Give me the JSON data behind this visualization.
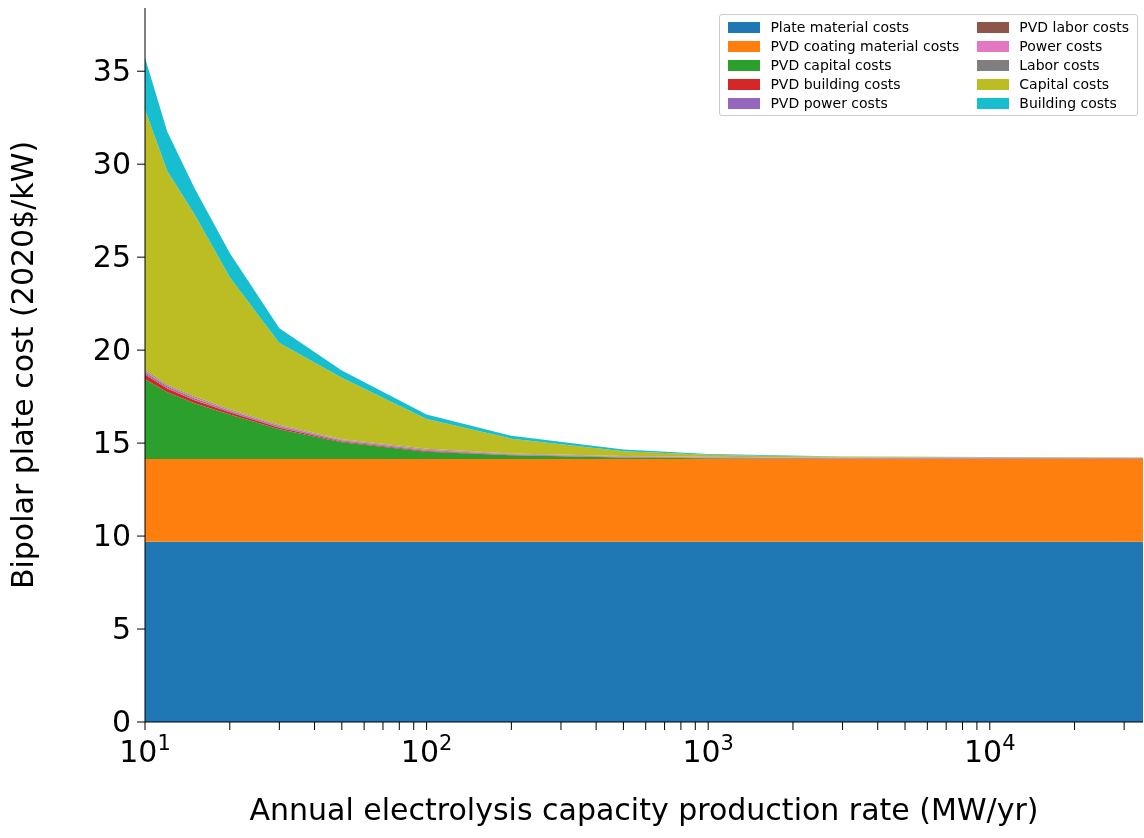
{
  "chart_data": {
    "type": "area",
    "stacked": true,
    "xlabel": "Annual electrolysis capacity production rate (MW/yr)",
    "ylabel": "Bipolar plate cost (2020$/kW)",
    "log": "x",
    "x": [
      10,
      12,
      15,
      20,
      30,
      50,
      100,
      200,
      500,
      1000,
      3000,
      10000,
      35000
    ],
    "xlim": [
      10,
      35000
    ],
    "xticks": [
      {
        "value": 10,
        "label": "10$^{1}$"
      },
      {
        "value": 20,
        "label": null
      },
      {
        "value": 30,
        "label": null
      },
      {
        "value": 40,
        "label": null
      },
      {
        "value": 50,
        "label": null
      },
      {
        "value": 60,
        "label": null
      },
      {
        "value": 70,
        "label": null
      },
      {
        "value": 80,
        "label": null
      },
      {
        "value": 90,
        "label": null
      },
      {
        "value": 100,
        "label": "10$^{2}$"
      },
      {
        "value": 200,
        "label": null
      },
      {
        "value": 300,
        "label": null
      },
      {
        "value": 400,
        "label": null
      },
      {
        "value": 500,
        "label": null
      },
      {
        "value": 600,
        "label": null
      },
      {
        "value": 700,
        "label": null
      },
      {
        "value": 800,
        "label": null
      },
      {
        "value": 900,
        "label": null
      },
      {
        "value": 1000,
        "label": "10$^{3}$"
      },
      {
        "value": 2000,
        "label": null
      },
      {
        "value": 3000,
        "label": null
      },
      {
        "value": 4000,
        "label": null
      },
      {
        "value": 5000,
        "label": null
      },
      {
        "value": 6000,
        "label": null
      },
      {
        "value": 7000,
        "label": null
      },
      {
        "value": 8000,
        "label": null
      },
      {
        "value": 9000,
        "label": null
      },
      {
        "value": 10000,
        "label": "10$^{4}$"
      },
      {
        "value": 20000,
        "label": null
      },
      {
        "value": 30000,
        "label": null
      }
    ],
    "ylim": [
      0,
      38.4
    ],
    "yticks": [
      0,
      5,
      10,
      15,
      20,
      25,
      30,
      35
    ],
    "grid": false,
    "legend": "top right",
    "series": [
      {
        "name": "Plate material costs",
        "color": "#1f77b4",
        "values": [
          9.7,
          9.7,
          9.7,
          9.7,
          9.7,
          9.7,
          9.7,
          9.7,
          9.7,
          9.7,
          9.7,
          9.7,
          9.7
        ]
      },
      {
        "name": "PVD coating material costs",
        "color": "#ff7f0e",
        "values": [
          4.44,
          4.44,
          4.44,
          4.44,
          4.44,
          4.44,
          4.44,
          4.44,
          4.44,
          4.44,
          4.44,
          4.44,
          4.44
        ]
      },
      {
        "name": "PVD capital costs",
        "color": "#2ca02c",
        "values": [
          4.3,
          3.6,
          3.0,
          2.4,
          1.6,
          0.9,
          0.4,
          0.2,
          0.08,
          0.04,
          0.01,
          0.01,
          0
        ]
      },
      {
        "name": "PVD building costs",
        "color": "#d62728",
        "values": [
          0.25,
          0.2,
          0.16,
          0.12,
          0.08,
          0.05,
          0.03,
          0.02,
          0.01,
          0.01,
          0,
          0,
          0
        ]
      },
      {
        "name": "PVD power costs",
        "color": "#9467bd",
        "values": [
          0.06,
          0.05,
          0.05,
          0.04,
          0.04,
          0.03,
          0.03,
          0.02,
          0.02,
          0.02,
          0.02,
          0.02,
          0.02
        ]
      },
      {
        "name": "PVD labor costs",
        "color": "#8c564b",
        "values": [
          0.06,
          0.05,
          0.05,
          0.04,
          0.04,
          0.03,
          0.03,
          0.02,
          0.02,
          0.02,
          0.02,
          0.02,
          0.02
        ]
      },
      {
        "name": "Power costs",
        "color": "#e377c2",
        "values": [
          0.06,
          0.05,
          0.05,
          0.04,
          0.04,
          0.03,
          0.03,
          0.02,
          0.02,
          0.02,
          0.02,
          0.02,
          0.02
        ]
      },
      {
        "name": "Labor costs",
        "color": "#7f7f7f",
        "values": [
          0.06,
          0.05,
          0.05,
          0.04,
          0.04,
          0.03,
          0.03,
          0.02,
          0.02,
          0.01,
          0.01,
          0.01,
          0.01
        ]
      },
      {
        "name": "Capital costs",
        "color": "#bcbd22",
        "values": [
          14.0,
          11.5,
          9.8,
          7.1,
          4.4,
          3.3,
          1.6,
          0.8,
          0.25,
          0.11,
          0.04,
          0.02,
          0.01
        ]
      },
      {
        "name": "Building costs",
        "color": "#17becf",
        "values": [
          2.8,
          2.1,
          1.4,
          1.3,
          0.8,
          0.4,
          0.25,
          0.15,
          0.1,
          0.05,
          0.02,
          0.01,
          0.01
        ]
      }
    ]
  }
}
